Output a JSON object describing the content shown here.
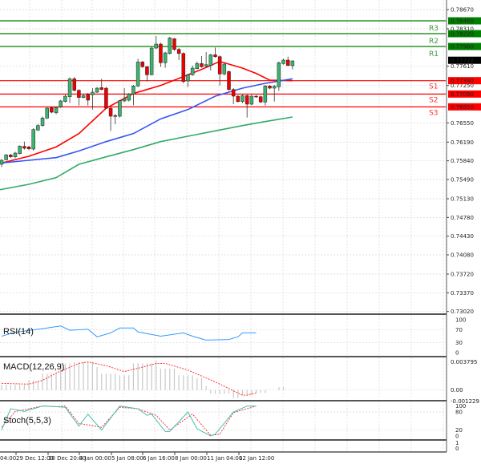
{
  "chart_data": {
    "type": "candlestick",
    "title": "",
    "price_axis": {
      "labels": [
        "0.78670",
        "0.78310",
        "0.77610",
        "0.77250",
        "0.76550",
        "0.76190",
        "0.75840",
        "0.75490",
        "0.75130",
        "0.74780",
        "0.74430",
        "0.74080",
        "0.73720",
        "0.73370",
        "0.73020"
      ],
      "ylim": [
        0.7302,
        0.7867
      ]
    },
    "time_axis": {
      "labels": [
        "04:00",
        "29 Dec 12:00",
        "30 Dec 20:00",
        "4 Jan 00:00",
        "5 Jan 08:00",
        "6 Jan 16:00",
        "8 Jan 00:00",
        "11 Jan 04:00",
        "12 Jan 12:00"
      ],
      "label_candle_index": [
        -1,
        6,
        13,
        20,
        27,
        34,
        41,
        48,
        55
      ]
    },
    "current_price": {
      "value": 0.77722,
      "label": "0.77722"
    },
    "levels": [
      {
        "name": "R3",
        "value": 0.7846,
        "label": "0.78460",
        "color": "#008000"
      },
      {
        "name": "R2",
        "value": 0.7822,
        "label": "0.78220",
        "color": "#008000"
      },
      {
        "name": "R1",
        "value": 0.7798,
        "label": "0.77980",
        "color": "#008000"
      },
      {
        "name": "S1",
        "value": 0.7734,
        "label": "0.77340",
        "color": "#ff0000"
      },
      {
        "name": "S2",
        "value": 0.7709,
        "label": "0.77090",
        "color": "#ff0000"
      },
      {
        "name": "S3",
        "value": 0.7685,
        "label": "0.76850",
        "color": "#ff0000"
      }
    ],
    "candles_ohlc": [
      [
        0.75775,
        0.75875,
        0.75725,
        0.7585
      ],
      [
        0.7586,
        0.7597,
        0.7585,
        0.7595
      ],
      [
        0.7595,
        0.7597,
        0.7589,
        0.75915
      ],
      [
        0.75915,
        0.7601,
        0.7589,
        0.75985
      ],
      [
        0.75975,
        0.7613,
        0.7596,
        0.76115
      ],
      [
        0.7611,
        0.762,
        0.7605,
        0.76075
      ],
      [
        0.761,
        0.7612,
        0.7604,
        0.76065
      ],
      [
        0.7606,
        0.7645,
        0.7603,
        0.76425
      ],
      [
        0.76415,
        0.7653,
        0.764,
        0.765
      ],
      [
        0.765,
        0.7667,
        0.7648,
        0.7664
      ],
      [
        0.7664,
        0.7684,
        0.7662,
        0.76825
      ],
      [
        0.76835,
        0.7685,
        0.7673,
        0.7675
      ],
      [
        0.7674,
        0.7685,
        0.7671,
        0.76835
      ],
      [
        0.7685,
        0.7698,
        0.7683,
        0.7696
      ],
      [
        0.7695,
        0.7708,
        0.7693,
        0.7705
      ],
      [
        0.7704,
        0.774,
        0.76925,
        0.77375
      ],
      [
        0.77375,
        0.7741,
        0.7714,
        0.7716
      ],
      [
        0.7716,
        0.7718,
        0.76875,
        0.77025
      ],
      [
        0.77025,
        0.7709,
        0.7701,
        0.7706
      ],
      [
        0.7709,
        0.7711,
        0.76875,
        0.76975
      ],
      [
        0.77075,
        0.772,
        0.768,
        0.77125
      ],
      [
        0.77125,
        0.7722,
        0.7711,
        0.772
      ],
      [
        0.7721,
        0.77375,
        0.7716,
        0.77175
      ],
      [
        0.772,
        0.7722,
        0.7681,
        0.76825
      ],
      [
        0.76825,
        0.7684,
        0.764,
        0.76675
      ],
      [
        0.76685,
        0.7672,
        0.76525,
        0.76675
      ],
      [
        0.76675,
        0.7698,
        0.7665,
        0.76965
      ],
      [
        0.7696,
        0.772,
        0.7694,
        0.77
      ],
      [
        0.76975,
        0.7711,
        0.7695,
        0.7709
      ],
      [
        0.7709,
        0.7726,
        0.7688,
        0.7724
      ],
      [
        0.7724,
        0.7775,
        0.7722,
        0.7769
      ],
      [
        0.7769,
        0.7771,
        0.7758,
        0.776
      ],
      [
        0.776,
        0.7762,
        0.77325,
        0.7745
      ],
      [
        0.7745,
        0.7797,
        0.7744,
        0.7795
      ],
      [
        0.7795,
        0.78175,
        0.7793,
        0.78025
      ],
      [
        0.78025,
        0.7805,
        0.776,
        0.77675
      ],
      [
        0.77675,
        0.7788,
        0.7758,
        0.7786
      ],
      [
        0.7785,
        0.7816,
        0.7783,
        0.7814
      ],
      [
        0.78125,
        0.7814,
        0.779,
        0.77925
      ],
      [
        0.77925,
        0.7795,
        0.77725,
        0.7785
      ],
      [
        0.7785,
        0.7787,
        0.7729,
        0.77325
      ],
      [
        0.77335,
        0.7747,
        0.77225,
        0.7745
      ],
      [
        0.7745,
        0.77625,
        0.7743,
        0.77575
      ],
      [
        0.77565,
        0.777,
        0.7755,
        0.7766
      ],
      [
        0.7766,
        0.778,
        0.7758,
        0.776
      ],
      [
        0.7761,
        0.77875,
        0.7758,
        0.7764
      ],
      [
        0.77625,
        0.7784,
        0.7753,
        0.77825
      ],
      [
        0.77825,
        0.7796,
        0.7777,
        0.7779
      ],
      [
        0.7779,
        0.7781,
        0.7725,
        0.77465
      ],
      [
        0.77465,
        0.7767,
        0.7744,
        0.7765
      ],
      [
        0.7751,
        0.7753,
        0.7715,
        0.77175
      ],
      [
        0.77175,
        0.772,
        0.769,
        0.7705
      ],
      [
        0.7705,
        0.7707,
        0.7693,
        0.7695
      ],
      [
        0.7695,
        0.7708,
        0.7692,
        0.7706
      ],
      [
        0.7706,
        0.7708,
        0.7665,
        0.769
      ],
      [
        0.769,
        0.7708,
        0.7688,
        0.7705
      ],
      [
        0.7705,
        0.7707,
        0.7702,
        0.7704
      ],
      [
        0.7704,
        0.7706,
        0.7692,
        0.7694
      ],
      [
        0.7694,
        0.7726,
        0.76875,
        0.7724
      ],
      [
        0.7724,
        0.7726,
        0.7718,
        0.772
      ],
      [
        0.772,
        0.7726,
        0.7695,
        0.77235
      ],
      [
        0.77225,
        0.777,
        0.7715,
        0.77675
      ],
      [
        0.7766,
        0.7775,
        0.7764,
        0.77725
      ],
      [
        0.77725,
        0.7779,
        0.7761,
        0.77625
      ],
      [
        0.7762,
        0.7772,
        0.7755,
        0.7771
      ]
    ],
    "moving_averages": [
      {
        "color": "#ff0000",
        "points": [
          [
            0,
            0.758
          ],
          [
            6,
            0.75925
          ],
          [
            12,
            0.761
          ],
          [
            17,
            0.7635
          ],
          [
            23,
            0.76825
          ],
          [
            29,
            0.771
          ],
          [
            35,
            0.7725
          ],
          [
            38,
            0.7735
          ],
          [
            41,
            0.7745
          ],
          [
            44,
            0.7755
          ],
          [
            48,
            0.777
          ],
          [
            53,
            0.77575
          ],
          [
            56,
            0.77475
          ],
          [
            59,
            0.7735
          ],
          [
            64,
            0.7734
          ]
        ]
      },
      {
        "color": "#3355ee",
        "points": [
          [
            0,
            0.758
          ],
          [
            6,
            0.7585
          ],
          [
            12,
            0.759
          ],
          [
            17,
            0.76025
          ],
          [
            23,
            0.762
          ],
          [
            29,
            0.7635
          ],
          [
            35,
            0.76625
          ],
          [
            41,
            0.768
          ],
          [
            47,
            0.7705
          ],
          [
            53,
            0.772
          ],
          [
            58,
            0.7729
          ],
          [
            64,
            0.77375
          ]
        ]
      },
      {
        "color": "#33aa66",
        "points": [
          [
            -1,
            0.7529
          ],
          [
            6,
            0.754
          ],
          [
            12,
            0.75525
          ],
          [
            17,
            0.75775
          ],
          [
            23,
            0.75915
          ],
          [
            29,
            0.7605
          ],
          [
            35,
            0.762
          ],
          [
            41,
            0.763
          ],
          [
            47,
            0.764
          ],
          [
            53,
            0.765
          ],
          [
            58,
            0.76575
          ],
          [
            64,
            0.7666
          ]
        ]
      }
    ],
    "rsi": {
      "label": "RSI(14)",
      "axis_labels": [
        "100",
        "70",
        "30",
        "0"
      ],
      "points": [
        [
          0,
          50
        ],
        [
          3,
          62
        ],
        [
          9,
          73
        ],
        [
          13,
          81
        ],
        [
          15,
          68
        ],
        [
          19,
          71
        ],
        [
          21,
          48
        ],
        [
          24,
          60
        ],
        [
          26,
          75
        ],
        [
          29,
          75
        ],
        [
          30,
          63
        ],
        [
          35,
          50
        ],
        [
          40,
          60
        ],
        [
          42,
          50
        ],
        [
          45,
          38
        ],
        [
          50,
          40
        ],
        [
          52,
          48
        ],
        [
          53,
          60
        ],
        [
          56,
          60
        ]
      ]
    },
    "macd": {
      "label": "MACD(12,26,9)",
      "axis_labels": [
        "0.003795",
        "0.00",
        "-0.001229"
      ],
      "range": [
        -0.001229,
        0.003795
      ],
      "histogram": [
        0.0007,
        0.0007,
        0.0007,
        0.0007,
        0.0007,
        0.0007,
        0.0013,
        0.0013,
        0.0013,
        0.0022,
        0.0022,
        0.0022,
        0.0022,
        0.0036,
        0.0036,
        0.0036,
        0.0038,
        0.0038,
        0.0038,
        0.0038,
        0.0038,
        0.0031,
        0.0022,
        0.0022,
        0.0022,
        0.0022,
        0.002,
        0.002,
        0.002,
        0.0036,
        0.0036,
        0.0036,
        0.0036,
        0.0036,
        0.004,
        0.0029,
        0.0029,
        0.0029,
        0.0029,
        0.002,
        0.002,
        0.002,
        0.002,
        0.0016,
        0.0016,
        0.0005,
        -0.0005,
        -0.0005,
        -0.0005,
        -0.0005,
        -0.0005,
        -0.0011,
        -0.0011,
        -0.0007,
        -0.0007,
        -0.0007,
        -0.0004,
        -0.0004,
        -0.0004,
        0.0,
        0.0,
        0.0004,
        0.0004
      ],
      "signal": [
        [
          0,
          0.0009
        ],
        [
          6,
          0.0008
        ],
        [
          9,
          0.0013
        ],
        [
          12,
          0.0023
        ],
        [
          17,
          0.0036
        ],
        [
          19,
          0.0038
        ],
        [
          23,
          0.0033
        ],
        [
          27,
          0.0025
        ],
        [
          31,
          0.0031
        ],
        [
          34,
          0.0036
        ],
        [
          36,
          0.0036
        ],
        [
          41,
          0.0027
        ],
        [
          47,
          0.0011
        ],
        [
          50,
          0.0002
        ],
        [
          53,
          -0.0007
        ],
        [
          54,
          -0.0007
        ],
        [
          56,
          -0.0004
        ]
      ]
    },
    "stochastic": {
      "label": "Stoch(5,5,3)",
      "axis_labels": [
        "100",
        "80",
        "20",
        "0"
      ],
      "main": [
        [
          0,
          20
        ],
        [
          2,
          91
        ],
        [
          5,
          82
        ],
        [
          9,
          100
        ],
        [
          10,
          100
        ],
        [
          14,
          96
        ],
        [
          17,
          33
        ],
        [
          19,
          73
        ],
        [
          22,
          20
        ],
        [
          26,
          100
        ],
        [
          30,
          91
        ],
        [
          32,
          69
        ],
        [
          33,
          73
        ],
        [
          36,
          15
        ],
        [
          37,
          15
        ],
        [
          41,
          80
        ],
        [
          43,
          24
        ],
        [
          46,
          0
        ],
        [
          47,
          6
        ],
        [
          51,
          80
        ],
        [
          54,
          100
        ],
        [
          56,
          100
        ]
      ],
      "signal": [
        [
          0,
          29
        ],
        [
          3,
          82
        ],
        [
          9,
          100
        ],
        [
          12,
          98
        ],
        [
          14,
          100
        ],
        [
          17,
          42
        ],
        [
          22,
          29
        ],
        [
          26,
          96
        ],
        [
          30,
          91
        ],
        [
          34,
          69
        ],
        [
          37,
          20
        ],
        [
          42,
          73
        ],
        [
          46,
          2
        ],
        [
          48,
          6
        ],
        [
          51,
          78
        ],
        [
          56,
          100
        ]
      ]
    },
    "extra_pane": {
      "axis_labels": [
        "1",
        "0"
      ]
    }
  }
}
